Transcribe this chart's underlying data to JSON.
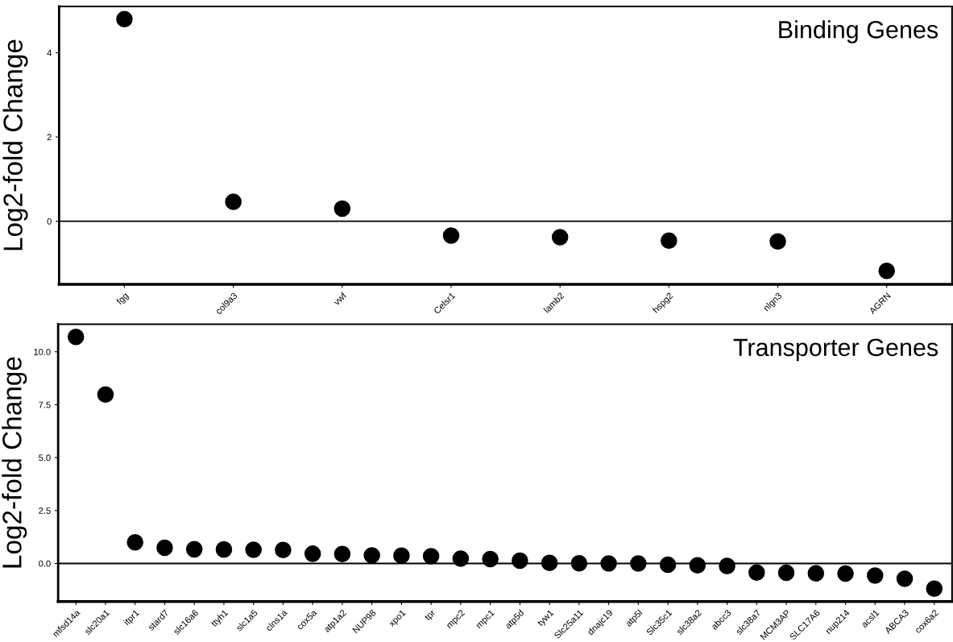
{
  "chart_data": [
    {
      "type": "scatter",
      "title": "Binding Genes",
      "ylabel": "Log2-fold Change",
      "categories": [
        "fgg",
        "col9a3",
        "vwf",
        "Celsr1",
        "lamb2",
        "hspg2",
        "nlgn3",
        "AGRN"
      ],
      "series": [
        {
          "color": "#000000",
          "values": [
            4.8,
            0.46,
            0.3,
            -0.34,
            -0.38,
            -0.46,
            -0.48,
            -1.18
          ]
        }
      ],
      "ylim": [
        -1.5,
        5.1
      ],
      "yticks": [
        0,
        2,
        4
      ],
      "ref_lines": [
        {
          "axis": "y",
          "value": 0,
          "color": "#000000"
        }
      ],
      "grid": false,
      "legend": false,
      "marker": "circle"
    },
    {
      "type": "scatter",
      "title": "Transporter Genes",
      "ylabel": "Log2-fold Change",
      "categories": [
        "mfsd14a",
        "slc20a1",
        "itpr1",
        "stard7",
        "slc16a6",
        "ttyh1",
        "slc1a5",
        "clns1a",
        "cox5a",
        "atp1a2",
        "NUP98",
        "xpo1",
        "tpr",
        "mpc2",
        "mpc1",
        "atp5d",
        "tyw1",
        "Slc25a11",
        "dnajc19",
        "atp5l",
        "Slc35c1",
        "slc38a2",
        "abcc3",
        "slc38a7",
        "MCM3AP",
        "SLC17A6",
        "nup214",
        "acsl1",
        "ABCA3",
        "cox6a2"
      ],
      "series": [
        {
          "color": "#000000",
          "values": [
            10.7,
            7.98,
            1.0,
            0.74,
            0.67,
            0.66,
            0.65,
            0.64,
            0.46,
            0.45,
            0.38,
            0.37,
            0.34,
            0.23,
            0.21,
            0.13,
            0.03,
            0.01,
            0.0,
            0.0,
            -0.06,
            -0.09,
            -0.12,
            -0.43,
            -0.44,
            -0.47,
            -0.48,
            -0.57,
            -0.72,
            -1.19
          ]
        }
      ],
      "ylim": [
        -1.8,
        11.3
      ],
      "yticks": [
        {
          "value": 0,
          "label": "0.0"
        },
        {
          "value": 2.5,
          "label": "2.5"
        },
        {
          "value": 5,
          "label": "5.0"
        },
        {
          "value": 7.5,
          "label": "7.5"
        },
        {
          "value": 10,
          "label": "10.0"
        }
      ],
      "ref_lines": [
        {
          "axis": "y",
          "value": 0,
          "color": "#000000"
        }
      ],
      "grid": false,
      "legend": false,
      "marker": "circle"
    }
  ]
}
